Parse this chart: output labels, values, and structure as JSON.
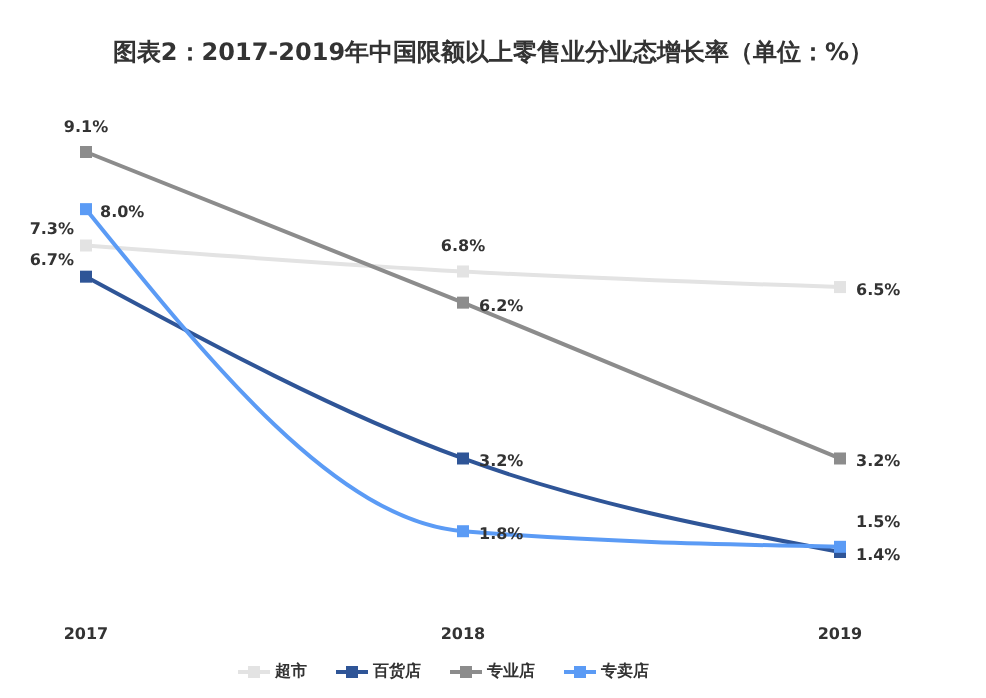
{
  "chart_data": {
    "type": "line",
    "title": "图表2：2017-2019年中国限额以上零售业分业态增长率（单位：%）",
    "categories": [
      "2017",
      "2018",
      "2019"
    ],
    "series": [
      {
        "name": "超市",
        "color": "#e3e3e3",
        "values": [
          7.3,
          6.8,
          6.5
        ],
        "value_labels": [
          "7.3%",
          "6.8%",
          "6.5%"
        ]
      },
      {
        "name": "百货店",
        "color": "#2f5597",
        "values": [
          6.7,
          3.2,
          1.4
        ],
        "value_labels": [
          "6.7%",
          "3.2%",
          "1.4%"
        ]
      },
      {
        "name": "专业店",
        "color": "#8c8c8c",
        "values": [
          9.1,
          6.2,
          3.2
        ],
        "value_labels": [
          "9.1%",
          "6.2%",
          "3.2%"
        ]
      },
      {
        "name": "专卖店",
        "color": "#5b9bf5",
        "values": [
          8.0,
          1.8,
          1.5
        ],
        "value_labels": [
          "8.0%",
          "1.8%",
          "1.5%"
        ]
      }
    ],
    "marker": "square",
    "legend": "bottom"
  }
}
